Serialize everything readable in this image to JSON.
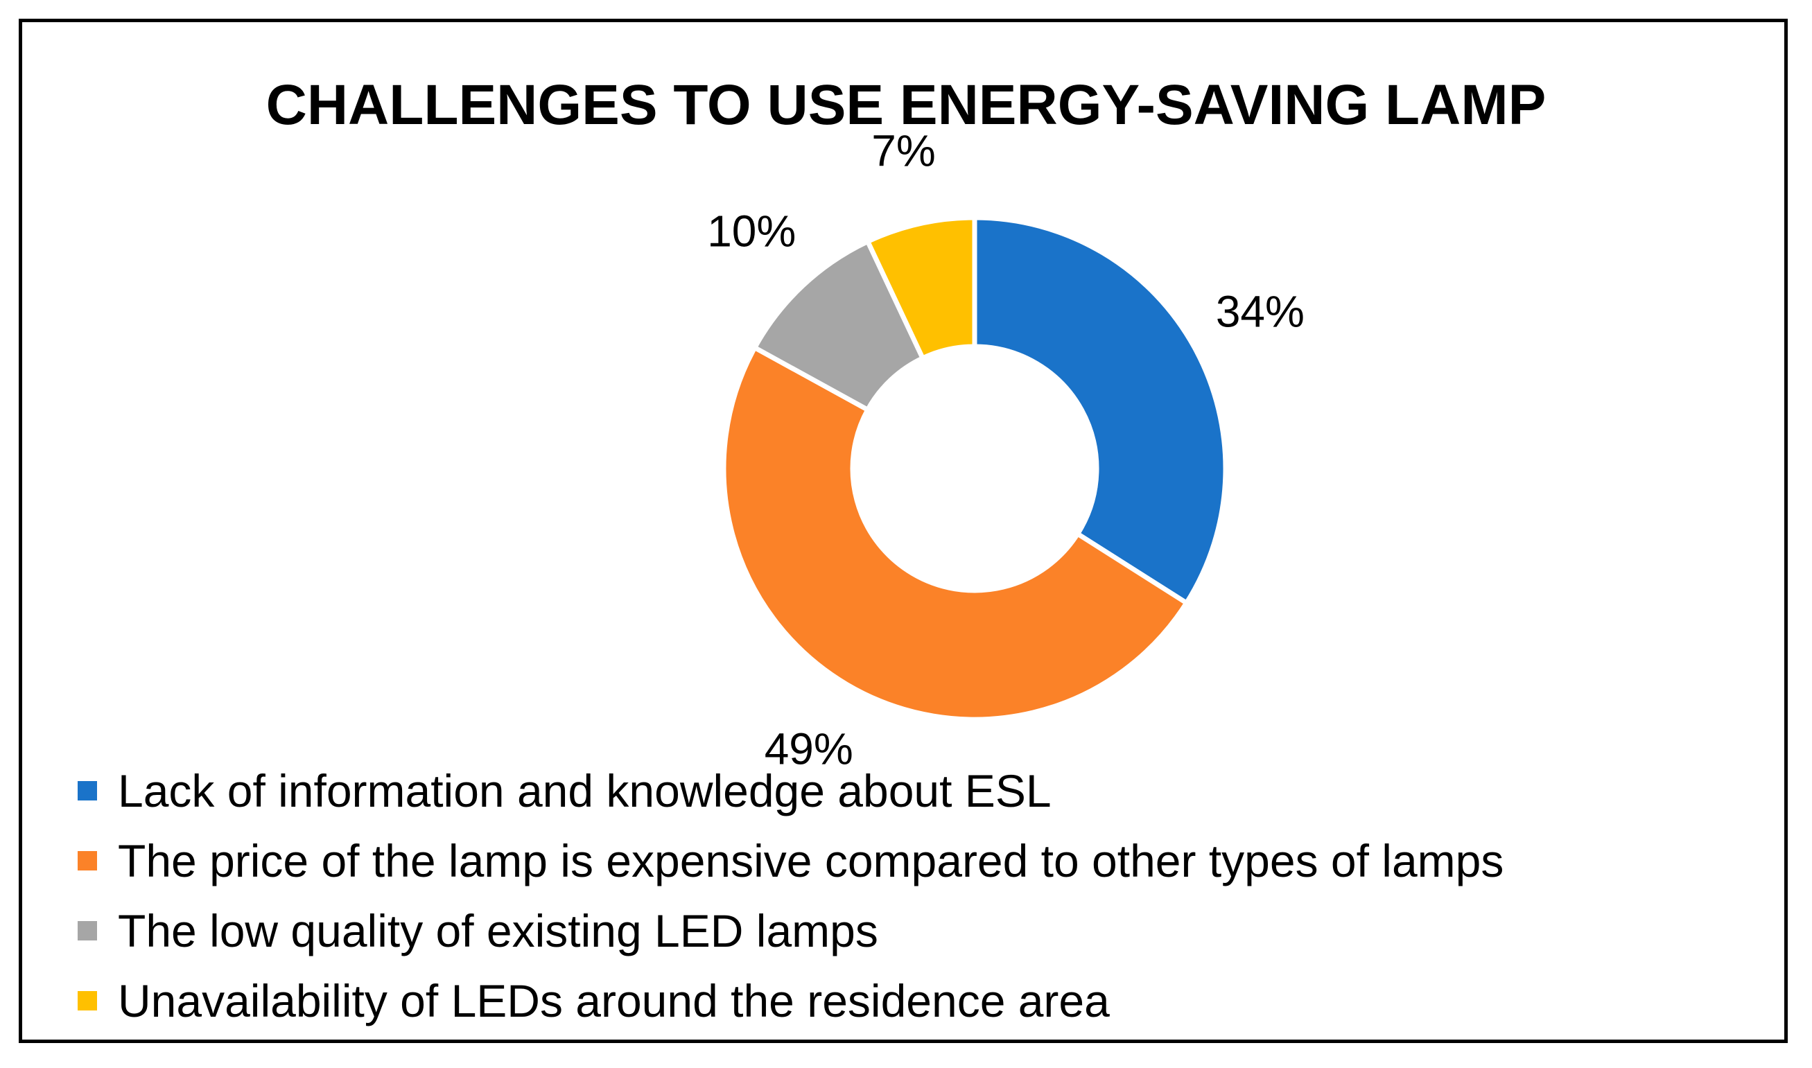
{
  "chart_data": {
    "type": "pie",
    "variant": "donut",
    "title": "CHALLENGES TO USE ENERGY-SAVING LAMP",
    "categories": [
      "Lack of information and knowledge about ESL",
      "The price of the lamp is expensive compared to other types of lamps",
      "The low quality of existing LED lamps",
      "Unavailability of LEDs around the residence area"
    ],
    "values": [
      34,
      49,
      10,
      7
    ],
    "data_labels": [
      "34%",
      "49%",
      "10%",
      "7%"
    ],
    "colors": [
      "#1a73c9",
      "#fb8228",
      "#a6a6a6",
      "#ffc000"
    ],
    "legend_position": "bottom"
  }
}
